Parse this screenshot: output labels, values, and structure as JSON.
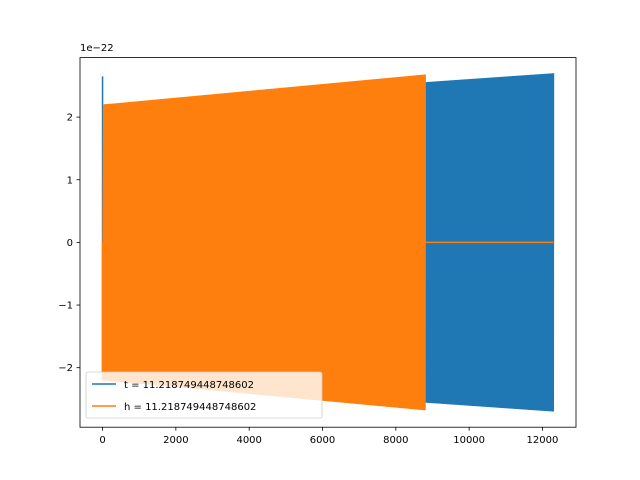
{
  "chart_data": {
    "type": "line",
    "title": "",
    "xlabel": "",
    "ylabel": "",
    "offset_text": "1e−22",
    "xlim": [
      -615,
      12915
    ],
    "ylim": [
      -2.95,
      2.95
    ],
    "xticks": [
      0,
      2000,
      4000,
      6000,
      8000,
      10000,
      12000
    ],
    "xtick_labels": [
      "0",
      "2000",
      "4000",
      "6000",
      "8000",
      "10000",
      "12000"
    ],
    "yticks": [
      -2,
      -1,
      0,
      1,
      2
    ],
    "ytick_labels": [
      "−2",
      "−1",
      "0",
      "1",
      "2"
    ],
    "grid": false,
    "legend": {
      "position": "lower-left"
    },
    "series": [
      {
        "name": "t = 11.218749448748602",
        "color": "#1f77b4",
        "description": "oscillating signal with growing envelope",
        "x_range": [
          0,
          12300
        ],
        "initial_spike": 2.65,
        "envelope_start": 2.2,
        "envelope_end": 2.7
      },
      {
        "name": "h = 11.218749448748602",
        "color": "#ff7f0e",
        "description": "oscillating signal then flat zero",
        "x_range": [
          0,
          8800
        ],
        "envelope_start": 2.2,
        "envelope_end": 2.68,
        "zero_range": [
          8800,
          12300
        ]
      }
    ]
  }
}
